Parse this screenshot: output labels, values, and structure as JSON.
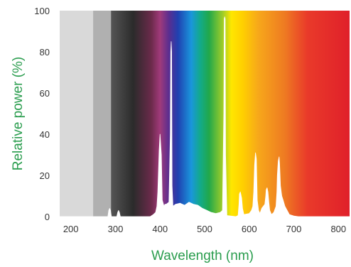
{
  "chart_data": {
    "type": "area",
    "title": "",
    "xlabel": "Wavelength (nm)",
    "ylabel": "Relative power (%)",
    "xlim": [
      175,
      825
    ],
    "ylim": [
      0,
      100
    ],
    "x_ticks": [
      200,
      300,
      400,
      500,
      600,
      700,
      800
    ],
    "y_ticks": [
      0,
      20,
      40,
      60,
      80,
      100
    ],
    "grid": false,
    "legend": "none",
    "label_color": "#2a9d4e",
    "tick_color": "#333333",
    "curve_color": "#ffffff",
    "background_bands": [
      {
        "from": 175,
        "to": 250,
        "color": "#d9d9d9"
      },
      {
        "from": 250,
        "to": 290,
        "color": "#b0b0b0"
      }
    ],
    "background_gradient": {
      "from": 290,
      "to": 825,
      "stops": [
        {
          "nm": 290,
          "color": "#555555"
        },
        {
          "nm": 340,
          "color": "#2b2b2b"
        },
        {
          "nm": 380,
          "color": "#6a2a4a"
        },
        {
          "nm": 400,
          "color": "#a03a7a"
        },
        {
          "nm": 420,
          "color": "#5a2e90"
        },
        {
          "nm": 440,
          "color": "#2040b0"
        },
        {
          "nm": 470,
          "color": "#1a96dc"
        },
        {
          "nm": 490,
          "color": "#12aa8a"
        },
        {
          "nm": 510,
          "color": "#22a84a"
        },
        {
          "nm": 540,
          "color": "#9ccc2a"
        },
        {
          "nm": 560,
          "color": "#ffe600"
        },
        {
          "nm": 585,
          "color": "#ffd000"
        },
        {
          "nm": 620,
          "color": "#f7a81a"
        },
        {
          "nm": 680,
          "color": "#ee7a22"
        },
        {
          "nm": 730,
          "color": "#e93a2a"
        },
        {
          "nm": 825,
          "color": "#e0202a"
        }
      ]
    },
    "series": [
      {
        "x": [
          175,
          283,
          285,
          287,
          289,
          291,
          293,
          303,
          305,
          307,
          309,
          311,
          313,
          370,
          378,
          385,
          390,
          393,
          395,
          398,
          400,
          403,
          405,
          409,
          411,
          414,
          420,
          423,
          424,
          425,
          426,
          427,
          429,
          435,
          445,
          455,
          465,
          475,
          485,
          495,
          505,
          515,
          525,
          535,
          540,
          543,
          544,
          545,
          546,
          547,
          550,
          570,
          575,
          577,
          578,
          580,
          583,
          585,
          588,
          600,
          605,
          608,
          610,
          612,
          614,
          616,
          618,
          621,
          624,
          628,
          635,
          637,
          638,
          640,
          642,
          644,
          646,
          650,
          655,
          660,
          662,
          663,
          665,
          667,
          668,
          670,
          673,
          676,
          680,
          690,
          700,
          710,
          825
        ],
        "y": [
          0,
          0,
          3,
          4,
          3,
          0,
          0,
          0,
          2,
          3,
          2,
          0,
          0,
          0,
          0,
          1,
          2,
          5,
          12,
          32,
          40,
          30,
          8,
          5,
          6,
          6,
          7,
          40,
          80,
          85,
          80,
          15,
          5,
          6,
          6.5,
          5.5,
          7,
          6,
          5.5,
          4,
          3,
          2,
          1.5,
          2,
          3,
          50,
          96,
          97,
          96,
          30,
          0.5,
          0,
          0.5,
          6,
          11,
          12,
          9,
          4,
          1,
          1.5,
          3,
          5,
          12,
          25,
          31,
          28,
          8,
          3,
          1.5,
          4,
          6,
          10,
          13,
          14,
          12,
          7,
          3,
          1,
          2,
          5,
          12,
          20,
          27,
          29,
          26,
          15,
          10,
          8,
          5,
          1,
          0.3,
          0,
          0
        ]
      }
    ]
  }
}
